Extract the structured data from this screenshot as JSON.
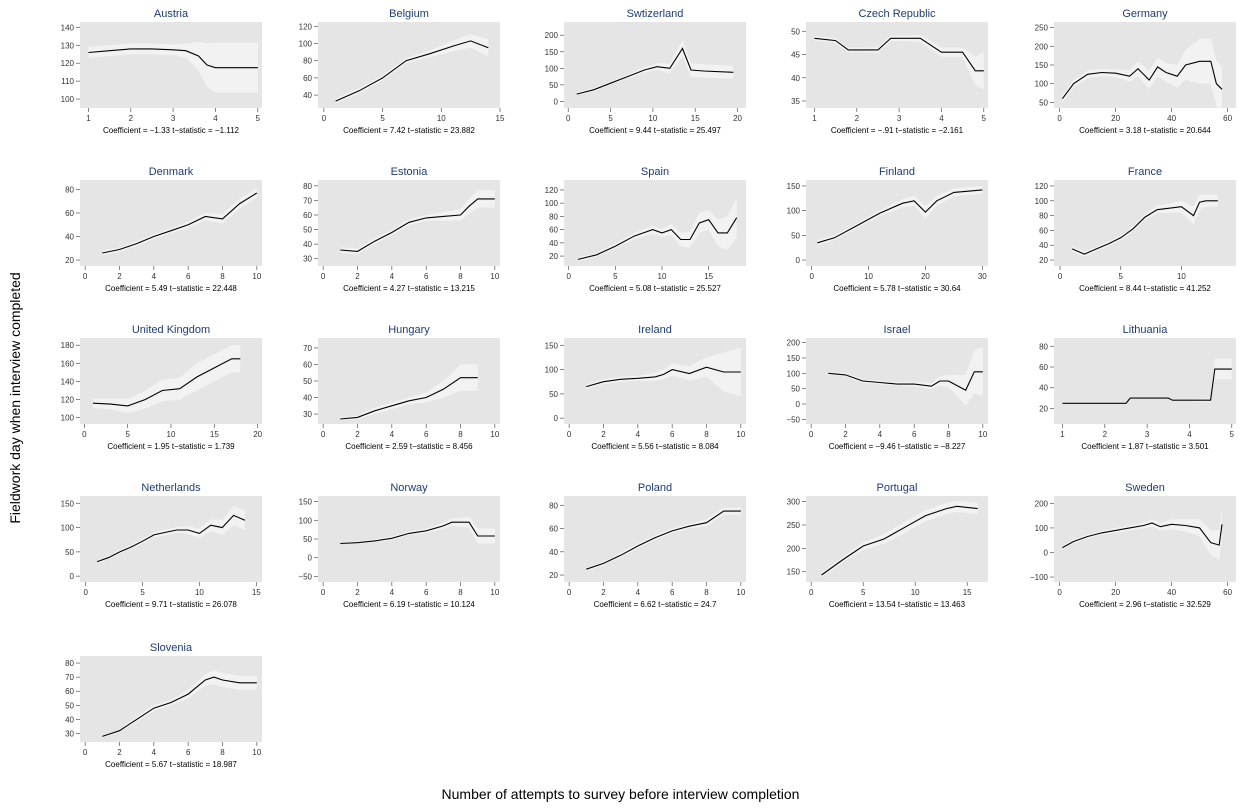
{
  "figure": {
    "ylabel": "Fieldwork day when interview completed",
    "xlabel": "Number of attempts to survey before interview completion"
  },
  "colors": {
    "panel_bg": "#e5e5e5",
    "band": "#f2f2f2",
    "line": "#000000",
    "title": "#1f3b73"
  },
  "chart_data": [
    {
      "type": "line",
      "title": "Austria",
      "stat": "Coefficient = −1.33  t−statistic = −1.112",
      "xlim": [
        0.8,
        5.1
      ],
      "ylim": [
        95,
        143
      ],
      "xticks": [
        1,
        2,
        3,
        4,
        5
      ],
      "yticks": [
        100,
        110,
        120,
        130,
        140
      ],
      "x": [
        1,
        1.5,
        2,
        2.5,
        3,
        3.3,
        3.6,
        3.8,
        4,
        4.5,
        5
      ],
      "y": [
        126,
        127,
        128,
        128,
        127.5,
        127,
        124,
        119,
        117.5,
        117.5,
        117.5
      ],
      "band": [
        3,
        3,
        3,
        3,
        3,
        4,
        8,
        12,
        14,
        14,
        14
      ]
    },
    {
      "type": "line",
      "title": "Belgium",
      "stat": "Coefficient = 7.42  t−statistic = 23.882",
      "xlim": [
        -0.5,
        15
      ],
      "ylim": [
        25,
        125
      ],
      "xticks": [
        0,
        5,
        10,
        15
      ],
      "yticks": [
        40,
        60,
        80,
        100,
        120
      ],
      "x": [
        1,
        3,
        5,
        7,
        9,
        11,
        12.5,
        14
      ],
      "y": [
        33,
        45,
        60,
        80,
        88,
        97,
        103,
        95
      ],
      "band": [
        3,
        3,
        3,
        3,
        4,
        6,
        8,
        10
      ]
    },
    {
      "type": "line",
      "title": "Swtizerland",
      "stat": "Coefficient = 9.44  t−statistic = 25.497",
      "xlim": [
        -0.5,
        21
      ],
      "ylim": [
        -20,
        240
      ],
      "xticks": [
        0,
        5,
        10,
        15,
        20
      ],
      "yticks": [
        0,
        50,
        100,
        150,
        200
      ],
      "x": [
        1,
        3,
        5,
        7,
        9,
        10.5,
        12,
        13.5,
        14.5,
        16,
        19.5
      ],
      "y": [
        22,
        35,
        55,
        75,
        95,
        105,
        100,
        160,
        95,
        92,
        88
      ],
      "band": [
        5,
        5,
        5,
        6,
        8,
        10,
        15,
        25,
        20,
        20,
        20
      ]
    },
    {
      "type": "line",
      "title": "Czech Republic",
      "stat": "Coefficient = −.91  t−statistic = −2.161",
      "xlim": [
        0.8,
        5.1
      ],
      "ylim": [
        33.5,
        52
      ],
      "xticks": [
        1,
        2,
        3,
        4,
        5
      ],
      "yticks": [
        35,
        40,
        45,
        50
      ],
      "x": [
        1,
        1.5,
        1.8,
        2.2,
        2.5,
        2.8,
        3.2,
        3.5,
        4,
        4.5,
        4.8,
        5
      ],
      "y": [
        48.5,
        48,
        46,
        46,
        46,
        48.5,
        48.5,
        48.5,
        45.5,
        45.5,
        41.5,
        41.5
      ],
      "band": [
        0.5,
        0.5,
        0.5,
        0.5,
        0.6,
        0.6,
        0.6,
        0.8,
        1,
        1,
        3,
        4
      ]
    },
    {
      "type": "line",
      "title": "Germany",
      "stat": "Coefficient = 3.18  t−statistic = 20.644",
      "xlim": [
        -2,
        63
      ],
      "ylim": [
        35,
        265
      ],
      "xticks": [
        0,
        20,
        40,
        60
      ],
      "yticks": [
        50,
        100,
        150,
        200,
        250
      ],
      "x": [
        1,
        5,
        10,
        15,
        20,
        25,
        28,
        32,
        35,
        38,
        42,
        45,
        50,
        54,
        56,
        58
      ],
      "y": [
        60,
        100,
        125,
        130,
        128,
        120,
        140,
        110,
        145,
        130,
        120,
        150,
        160,
        160,
        100,
        85
      ],
      "band": [
        10,
        10,
        10,
        10,
        10,
        15,
        20,
        25,
        25,
        25,
        30,
        40,
        60,
        60,
        60,
        60
      ]
    },
    {
      "type": "line",
      "title": "Denmark",
      "stat": "Coefficient = 5.49  t−statistic = 22.448",
      "xlim": [
        -0.3,
        10.3
      ],
      "ylim": [
        15,
        88
      ],
      "xticks": [
        0,
        2,
        4,
        6,
        8,
        10
      ],
      "yticks": [
        20,
        40,
        60,
        80
      ],
      "x": [
        1,
        2,
        3,
        4,
        5,
        6,
        7,
        8,
        9,
        10
      ],
      "y": [
        26,
        29,
        34,
        40,
        45,
        50,
        57,
        55,
        68,
        77
      ],
      "band": [
        2,
        2,
        2,
        2,
        2,
        3,
        3,
        4,
        4,
        4
      ]
    },
    {
      "type": "line",
      "title": "Estonia",
      "stat": "Coefficient = 4.27  t−statistic = 13.215",
      "xlim": [
        -0.3,
        10.3
      ],
      "ylim": [
        25,
        84
      ],
      "xticks": [
        0,
        2,
        4,
        6,
        8,
        10
      ],
      "yticks": [
        30,
        40,
        50,
        60,
        70,
        80
      ],
      "x": [
        1,
        2,
        3,
        4,
        5,
        6,
        7,
        8,
        8.5,
        9,
        10
      ],
      "y": [
        36,
        35,
        42,
        48,
        55,
        58,
        59,
        60,
        66,
        71,
        71
      ],
      "band": [
        2,
        2,
        2,
        2,
        2,
        2,
        3,
        4,
        5,
        6,
        6
      ]
    },
    {
      "type": "line",
      "title": "Spain",
      "stat": "Coefficient = 5.08  t−statistic = 25.527",
      "xlim": [
        -0.5,
        19
      ],
      "ylim": [
        5,
        135
      ],
      "xticks": [
        0,
        5,
        10,
        15
      ],
      "yticks": [
        20,
        40,
        60,
        80,
        100,
        120
      ],
      "x": [
        1,
        3,
        5,
        7,
        9,
        10,
        11,
        12,
        13,
        14,
        15,
        16,
        17,
        18
      ],
      "y": [
        15,
        22,
        35,
        50,
        60,
        55,
        60,
        45,
        45,
        70,
        75,
        55,
        55,
        78
      ],
      "band": [
        3,
        3,
        4,
        5,
        6,
        6,
        8,
        10,
        12,
        15,
        15,
        20,
        25,
        30
      ]
    },
    {
      "type": "line",
      "title": "Finland",
      "stat": "Coefficient = 5.78  t−statistic = 30.64",
      "xlim": [
        -1,
        31
      ],
      "ylim": [
        -12,
        162
      ],
      "xticks": [
        0,
        10,
        20,
        30
      ],
      "yticks": [
        0,
        50,
        100,
        150
      ],
      "x": [
        1,
        4,
        8,
        12,
        16,
        18,
        20,
        22,
        25,
        30
      ],
      "y": [
        35,
        45,
        70,
        95,
        115,
        120,
        97,
        120,
        137,
        142
      ],
      "band": [
        5,
        5,
        5,
        6,
        8,
        10,
        12,
        10,
        8,
        8
      ]
    },
    {
      "type": "line",
      "title": "France",
      "stat": "Coefficient = 8.44  t−statistic = 41.252",
      "xlim": [
        -0.5,
        14.5
      ],
      "ylim": [
        12,
        128
      ],
      "xticks": [
        0,
        5,
        10
      ],
      "yticks": [
        20,
        40,
        60,
        80,
        100,
        120
      ],
      "x": [
        1,
        2,
        3,
        4,
        5,
        6,
        7,
        8,
        9,
        10,
        11,
        11.5,
        12,
        12.5,
        13
      ],
      "y": [
        35,
        28,
        35,
        42,
        50,
        62,
        78,
        88,
        90,
        92,
        80,
        98,
        100,
        100,
        100
      ],
      "band": [
        4,
        3,
        3,
        3,
        3,
        3,
        4,
        5,
        6,
        8,
        12,
        10,
        8,
        8,
        8
      ]
    },
    {
      "type": "line",
      "title": "United Kingdom",
      "stat": "Coefficient = 1.95  t−statistic = 1.739",
      "xlim": [
        -0.5,
        20.5
      ],
      "ylim": [
        93,
        188
      ],
      "xticks": [
        0,
        5,
        10,
        15,
        20
      ],
      "yticks": [
        100,
        120,
        140,
        160,
        180
      ],
      "x": [
        1,
        3,
        5,
        7,
        9,
        11,
        13,
        15,
        17,
        18
      ],
      "y": [
        116,
        115,
        113,
        120,
        130,
        132,
        145,
        155,
        165,
        165
      ],
      "band": [
        5,
        6,
        8,
        10,
        12,
        12,
        15,
        15,
        15,
        15
      ]
    },
    {
      "type": "line",
      "title": "Hungary",
      "stat": "Coefficient = 2.59  t−statistic = 8.456",
      "xlim": [
        -0.3,
        10.3
      ],
      "ylim": [
        24,
        76
      ],
      "xticks": [
        0,
        2,
        4,
        6,
        8,
        10
      ],
      "yticks": [
        30,
        40,
        50,
        60,
        70
      ],
      "x": [
        1,
        2,
        3,
        4,
        5,
        6,
        7,
        8,
        9
      ],
      "y": [
        27,
        28,
        32,
        35,
        38,
        40,
        45,
        52,
        52
      ],
      "band": [
        1,
        1,
        2,
        2,
        2,
        3,
        5,
        8,
        8
      ]
    },
    {
      "type": "line",
      "title": "Ireland",
      "stat": "Coefficient = 5.56  t−statistic = 8.084",
      "xlim": [
        -0.3,
        10.3
      ],
      "ylim": [
        -12,
        165
      ],
      "xticks": [
        0,
        2,
        4,
        6,
        8,
        10
      ],
      "yticks": [
        0,
        50,
        100,
        150
      ],
      "x": [
        1,
        2,
        3,
        4,
        5,
        5.5,
        6,
        7,
        8,
        9,
        10
      ],
      "y": [
        65,
        75,
        80,
        82,
        85,
        90,
        100,
        92,
        105,
        95,
        95
      ],
      "band": [
        5,
        5,
        5,
        5,
        8,
        10,
        12,
        15,
        20,
        40,
        50
      ]
    },
    {
      "type": "line",
      "title": "Israel",
      "stat": "Coefficient = −9.46  t−statistic = −8.227",
      "xlim": [
        -0.3,
        10.3
      ],
      "ylim": [
        -65,
        215
      ],
      "xticks": [
        0,
        2,
        4,
        6,
        8,
        10
      ],
      "yticks": [
        -50,
        0,
        50,
        100,
        150,
        200
      ],
      "x": [
        1,
        2,
        3,
        4,
        5,
        6,
        7,
        7.5,
        8,
        9,
        9.5,
        10
      ],
      "y": [
        100,
        95,
        75,
        70,
        65,
        65,
        58,
        75,
        75,
        45,
        105,
        105
      ],
      "band": [
        5,
        5,
        6,
        6,
        6,
        8,
        10,
        15,
        20,
        50,
        70,
        80
      ]
    },
    {
      "type": "line",
      "title": "Lithuania",
      "stat": "Coefficient = 1.87  t−statistic = 3.501",
      "xlim": [
        0.8,
        5.1
      ],
      "ylim": [
        5,
        88
      ],
      "xticks": [
        1,
        2,
        3,
        4,
        5
      ],
      "yticks": [
        20,
        40,
        60,
        80
      ],
      "x": [
        1,
        2,
        2.5,
        2.6,
        3,
        3.5,
        3.6,
        4,
        4.5,
        4.6,
        5
      ],
      "y": [
        25,
        25,
        25,
        30,
        30,
        30,
        28,
        28,
        28,
        58,
        58
      ],
      "band": [
        1,
        1,
        1,
        1,
        1,
        1,
        1,
        1,
        2,
        10,
        10
      ]
    },
    {
      "type": "line",
      "title": "Netherlands",
      "stat": "Coefficient = 9.71  t−statistic = 26.078",
      "xlim": [
        -0.5,
        15.5
      ],
      "ylim": [
        -12,
        165
      ],
      "xticks": [
        0,
        5,
        10,
        15
      ],
      "yticks": [
        0,
        50,
        100,
        150
      ],
      "x": [
        1,
        2,
        3,
        4,
        5,
        6,
        7,
        8,
        9,
        10,
        11,
        12,
        13,
        14
      ],
      "y": [
        30,
        38,
        50,
        60,
        72,
        85,
        90,
        95,
        95,
        88,
        105,
        100,
        125,
        115
      ],
      "band": [
        3,
        3,
        4,
        4,
        5,
        5,
        6,
        6,
        8,
        10,
        12,
        15,
        20,
        20
      ]
    },
    {
      "type": "line",
      "title": "Norway",
      "stat": "Coefficient = 6.19  t−statistic = 10.124",
      "xlim": [
        -0.3,
        10.3
      ],
      "ylim": [
        -65,
        165
      ],
      "xticks": [
        0,
        2,
        4,
        6,
        8,
        10
      ],
      "yticks": [
        -50,
        0,
        50,
        100,
        150
      ],
      "x": [
        1,
        2,
        3,
        4,
        5,
        6,
        7,
        7.5,
        8,
        8.5,
        9,
        10
      ],
      "y": [
        38,
        40,
        45,
        52,
        65,
        72,
        85,
        95,
        95,
        95,
        58,
        58
      ],
      "band": [
        3,
        3,
        4,
        5,
        5,
        6,
        8,
        10,
        12,
        15,
        20,
        20
      ]
    },
    {
      "type": "line",
      "title": "Poland",
      "stat": "Coefficient = 6.62  t−statistic = 24.7",
      "xlim": [
        -0.3,
        10.3
      ],
      "ylim": [
        14,
        88
      ],
      "xticks": [
        0,
        2,
        4,
        6,
        8,
        10
      ],
      "yticks": [
        20,
        40,
        60,
        80
      ],
      "x": [
        1,
        2,
        3,
        4,
        5,
        6,
        7,
        8,
        9,
        10
      ],
      "y": [
        25,
        30,
        37,
        45,
        52,
        58,
        62,
        65,
        75,
        75
      ],
      "band": [
        1.5,
        1.5,
        2,
        2,
        2,
        2,
        2,
        3,
        3,
        3
      ]
    },
    {
      "type": "line",
      "title": "Portugal",
      "stat": "Coefficient = 13.54  t−statistic = 13.463",
      "xlim": [
        -0.5,
        17
      ],
      "ylim": [
        128,
        312
      ],
      "xticks": [
        0,
        5,
        10,
        15
      ],
      "yticks": [
        150,
        200,
        250,
        300
      ],
      "x": [
        1,
        3,
        5,
        7,
        9,
        11,
        13,
        14,
        16
      ],
      "y": [
        143,
        175,
        205,
        220,
        245,
        270,
        285,
        290,
        285
      ],
      "band": [
        5,
        6,
        8,
        10,
        12,
        12,
        12,
        12,
        12
      ]
    },
    {
      "type": "line",
      "title": "Sweden",
      "stat": "Coefficient = 2.96  t−statistic = 32.529",
      "xlim": [
        -2,
        63
      ],
      "ylim": [
        -120,
        230
      ],
      "xticks": [
        0,
        20,
        40,
        60
      ],
      "yticks": [
        -100,
        0,
        100,
        200
      ],
      "x": [
        1,
        5,
        10,
        15,
        20,
        25,
        30,
        33,
        36,
        40,
        45,
        50,
        54,
        57,
        58
      ],
      "y": [
        20,
        45,
        65,
        80,
        90,
        100,
        110,
        120,
        105,
        115,
        110,
        100,
        40,
        30,
        115
      ],
      "band": [
        8,
        8,
        8,
        8,
        10,
        10,
        12,
        15,
        15,
        20,
        25,
        35,
        50,
        60,
        60
      ]
    },
    {
      "type": "line",
      "title": "Slovenia",
      "stat": "Coefficient = 5.67  t−statistic = 18.987",
      "xlim": [
        -0.3,
        10.3
      ],
      "ylim": [
        24,
        85
      ],
      "xticks": [
        0,
        2,
        4,
        6,
        8,
        10
      ],
      "yticks": [
        30,
        40,
        50,
        60,
        70,
        80
      ],
      "x": [
        1,
        2,
        3,
        4,
        5,
        6,
        7,
        7.5,
        8,
        9,
        10
      ],
      "y": [
        28,
        32,
        40,
        48,
        52,
        58,
        68,
        70,
        68,
        66,
        66
      ],
      "band": [
        1,
        1,
        2,
        2,
        2,
        3,
        4,
        5,
        5,
        5,
        5
      ]
    }
  ]
}
